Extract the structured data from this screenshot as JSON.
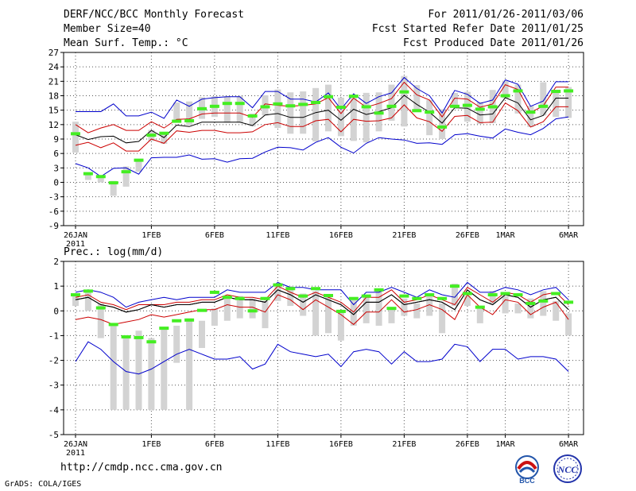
{
  "header": {
    "title": "DERF/NCC/BCC Monthly Forecast",
    "member_size": "Member Size=40",
    "variable": "Mean Surf. Temp.: °C",
    "period": "For 2011/01/26-2011/03/06",
    "start_date": "Fcst Started Refer Date 2011/01/25",
    "produced_date": "Fcst Produced Date 2011/01/26"
  },
  "footer": {
    "url": "http://cmdp.ncc.cma.gov.cn",
    "credit": "GrADS: COLA/IGES",
    "logo_bcc": "BCC",
    "logo_ncc": "NCC"
  },
  "colors": {
    "envelope": "#0000cc",
    "std_band": "#cc0000",
    "mean": "#000000",
    "bar": "#d3d3d3",
    "marker": "#44ee22",
    "grid": "#555555"
  },
  "chart_data": [
    {
      "type": "line",
      "title": "Mean Surf. Temp.: °C",
      "ylim": [
        -9,
        27
      ],
      "yticks": [
        -9,
        -6,
        -3,
        0,
        3,
        6,
        9,
        12,
        15,
        18,
        21,
        24,
        27
      ],
      "xticks": [
        {
          "day": 0,
          "label": "26JAN",
          "sub": "2011"
        },
        {
          "day": 6,
          "label": "1FEB"
        },
        {
          "day": 11,
          "label": "6FEB"
        },
        {
          "day": 16,
          "label": "11FEB"
        },
        {
          "day": 21,
          "label": "16FEB"
        },
        {
          "day": 26,
          "label": "21FEB"
        },
        {
          "day": 31,
          "label": "26FEB"
        },
        {
          "day": 34,
          "label": "1MAR"
        },
        {
          "day": 39,
          "label": "6MAR"
        }
      ],
      "series": [
        {
          "name": "max",
          "values": [
            14.7,
            14.7,
            14.7,
            16.3,
            13.8,
            13.8,
            14.6,
            13.3,
            17.1,
            15.8,
            17.3,
            17.6,
            17.8,
            17.8,
            15.5,
            18.9,
            18.9,
            17.3,
            17.3,
            16.7,
            18.6,
            15.2,
            18.4,
            16.4,
            17.8,
            18.6,
            21.8,
            19.5,
            18.0,
            14.4,
            19.1,
            18.3,
            16.4,
            17.1,
            21.3,
            20.4,
            15.8,
            16.9,
            20.9,
            20.9
          ]
        },
        {
          "name": "upper",
          "values": [
            12.0,
            10.3,
            11.3,
            12.0,
            10.8,
            10.8,
            12.6,
            11.3,
            13.1,
            13.2,
            14.2,
            14.4,
            14.4,
            14.4,
            13.5,
            16.3,
            16.0,
            15.8,
            16.0,
            16.3,
            17.6,
            14.3,
            17.5,
            15.6,
            16.4,
            17.4,
            20.8,
            18.2,
            17.1,
            13.6,
            17.5,
            17.3,
            15.6,
            16.3,
            20.3,
            19.3,
            14.5,
            15.9,
            19.8,
            19.8
          ]
        },
        {
          "name": "mean",
          "values": [
            9.9,
            8.9,
            9.5,
            9.6,
            8.2,
            8.5,
            10.8,
            9.3,
            11.9,
            11.6,
            12.5,
            12.5,
            12.5,
            12.5,
            11.8,
            14.0,
            14.3,
            13.5,
            13.5,
            14.5,
            15.0,
            12.9,
            15.2,
            14.1,
            14.7,
            15.5,
            18.1,
            16.2,
            14.6,
            12.3,
            15.5,
            15.4,
            14.0,
            14.2,
            17.6,
            16.5,
            13.0,
            13.9,
            17.5,
            17.5
          ]
        },
        {
          "name": "lower",
          "values": [
            7.7,
            8.3,
            7.2,
            8.2,
            6.5,
            6.5,
            9.0,
            8.1,
            10.7,
            10.4,
            10.8,
            10.8,
            10.3,
            10.3,
            10.5,
            12.0,
            12.4,
            11.6,
            11.6,
            12.8,
            13.1,
            10.5,
            13.1,
            12.7,
            12.8,
            13.4,
            16.1,
            13.4,
            12.6,
            10.6,
            13.7,
            13.9,
            12.4,
            12.5,
            16.5,
            14.9,
            11.5,
            12.6,
            15.7,
            15.7
          ]
        },
        {
          "name": "min",
          "values": [
            3.9,
            3.0,
            1.2,
            2.9,
            3.0,
            1.7,
            5.1,
            5.2,
            5.2,
            5.7,
            4.8,
            4.9,
            4.2,
            4.9,
            5.0,
            6.3,
            7.3,
            7.2,
            6.7,
            8.3,
            9.3,
            7.3,
            6.1,
            8.1,
            9.3,
            9.0,
            8.8,
            8.1,
            8.2,
            7.9,
            9.9,
            10.1,
            9.6,
            9.2,
            11.1,
            10.4,
            9.9,
            11.2,
            13.2,
            13.6
          ]
        }
      ],
      "boxes": [
        [
          6.2,
          12.6
        ],
        [
          0.5,
          1.8
        ],
        [
          0.0,
          1.4
        ],
        [
          -2.8,
          0.3
        ],
        [
          -0.9,
          3.3
        ],
        [
          2.2,
          4.8
        ],
        [
          8.6,
          10.9
        ],
        [
          8.0,
          10.0
        ],
        [
          12.6,
          16.6
        ],
        [
          11.9,
          16.8
        ],
        [
          13.2,
          17.7
        ],
        [
          13.6,
          17.9
        ],
        [
          12.4,
          17.9
        ],
        [
          12.4,
          17.9
        ],
        [
          11.6,
          14.3
        ],
        [
          13.9,
          18.1
        ],
        [
          11.3,
          19.3
        ],
        [
          10.1,
          18.7
        ],
        [
          10.1,
          18.9
        ],
        [
          8.5,
          19.6
        ],
        [
          10.6,
          20.3
        ],
        [
          9.6,
          17.6
        ],
        [
          8.6,
          18.1
        ],
        [
          8.3,
          18.6
        ],
        [
          10.6,
          18.7
        ],
        [
          12.8,
          20.3
        ],
        [
          11.6,
          22.1
        ],
        [
          14.9,
          20.2
        ],
        [
          9.8,
          17.1
        ],
        [
          9.0,
          15.2
        ],
        [
          15.8,
          18.6
        ],
        [
          12.6,
          18.8
        ],
        [
          12.1,
          16.7
        ],
        [
          12.3,
          19.2
        ],
        [
          17.5,
          21.1
        ],
        [
          14.3,
          20.3
        ],
        [
          11.5,
          15.9
        ],
        [
          13.9,
          20.8
        ],
        [
          13.6,
          19.2
        ],
        [
          13.4,
          19.8
        ]
      ],
      "markers": [
        10.1,
        1.8,
        1.2,
        -0.1,
        2.2,
        4.6,
        9.8,
        10.2,
        12.7,
        12.8,
        15.3,
        15.8,
        16.4,
        16.4,
        13.8,
        15.7,
        16.3,
        15.9,
        16.2,
        16.6,
        17.8,
        15.6,
        17.9,
        15.7,
        14.4,
        15.8,
        18.8,
        14.9,
        14.6,
        11.5,
        15.8,
        16.0,
        15.2,
        15.7,
        18.0,
        19.0,
        14.6,
        15.8,
        18.9,
        19.0
      ]
    },
    {
      "type": "line",
      "title": "Prec.: log(mm/d)",
      "ylim": [
        -5,
        2
      ],
      "yticks": [
        -5,
        -4,
        -3,
        -2,
        -1,
        0,
        1,
        2
      ],
      "xticks": [
        {
          "day": 0,
          "label": "26JAN",
          "sub": "2011"
        },
        {
          "day": 6,
          "label": "1FEB"
        },
        {
          "day": 11,
          "label": "6FEB"
        },
        {
          "day": 16,
          "label": "11FEB"
        },
        {
          "day": 21,
          "label": "16FEB"
        },
        {
          "day": 26,
          "label": "21FEB"
        },
        {
          "day": 31,
          "label": "26FEB"
        },
        {
          "day": 34,
          "label": "1MAR"
        },
        {
          "day": 39,
          "label": "6MAR"
        }
      ],
      "series": [
        {
          "name": "max",
          "values": [
            0.75,
            0.85,
            0.75,
            0.55,
            0.15,
            0.35,
            0.45,
            0.55,
            0.45,
            0.55,
            0.55,
            0.55,
            0.85,
            0.75,
            0.75,
            0.75,
            1.15,
            0.95,
            0.95,
            0.85,
            0.85,
            0.85,
            0.25,
            0.75,
            0.75,
            0.95,
            0.75,
            0.55,
            0.85,
            0.65,
            0.55,
            1.15,
            0.75,
            0.75,
            0.95,
            0.85,
            0.65,
            0.85,
            0.95,
            0.45
          ]
        },
        {
          "name": "upper",
          "values": [
            0.55,
            0.65,
            0.35,
            0.25,
            0.05,
            0.25,
            0.25,
            0.25,
            0.35,
            0.35,
            0.45,
            0.45,
            0.65,
            0.55,
            0.55,
            0.45,
            1.0,
            0.75,
            0.55,
            0.75,
            0.55,
            0.35,
            -0.05,
            0.55,
            0.55,
            0.85,
            0.35,
            0.45,
            0.65,
            0.45,
            0.25,
            0.95,
            0.65,
            0.35,
            0.75,
            0.65,
            0.35,
            0.65,
            0.75,
            0.25
          ]
        },
        {
          "name": "mean",
          "values": [
            0.45,
            0.55,
            0.25,
            0.15,
            -0.05,
            0.05,
            0.25,
            0.15,
            0.25,
            0.25,
            0.35,
            0.35,
            0.55,
            0.45,
            0.45,
            0.35,
            0.85,
            0.65,
            0.35,
            0.65,
            0.45,
            0.25,
            -0.15,
            0.35,
            0.35,
            0.65,
            0.25,
            0.35,
            0.45,
            0.35,
            0.05,
            0.85,
            0.45,
            0.25,
            0.65,
            0.55,
            0.15,
            0.45,
            0.55,
            0.05
          ]
        },
        {
          "name": "lower",
          "values": [
            -0.35,
            -0.25,
            -0.35,
            -0.55,
            -0.45,
            -0.35,
            -0.15,
            -0.25,
            -0.15,
            -0.05,
            0.05,
            0.05,
            0.25,
            0.15,
            0.15,
            -0.05,
            0.65,
            0.45,
            0.05,
            0.45,
            0.15,
            -0.15,
            -0.55,
            -0.05,
            -0.05,
            0.45,
            -0.05,
            0.05,
            0.25,
            0.05,
            -0.35,
            0.65,
            0.15,
            -0.15,
            0.45,
            0.35,
            -0.15,
            0.15,
            0.35,
            -0.35
          ]
        },
        {
          "name": "min",
          "values": [
            -2.05,
            -1.25,
            -1.55,
            -2.05,
            -2.45,
            -2.55,
            -2.35,
            -2.05,
            -1.75,
            -1.55,
            -1.75,
            -1.95,
            -1.95,
            -1.85,
            -2.35,
            -2.15,
            -1.35,
            -1.65,
            -1.75,
            -1.85,
            -1.75,
            -2.25,
            -1.65,
            -1.55,
            -1.65,
            -2.15,
            -1.65,
            -2.05,
            -2.05,
            -1.95,
            -1.35,
            -1.45,
            -2.05,
            -1.55,
            -1.55,
            -1.95,
            -1.85,
            -1.85,
            -1.95,
            -2.45
          ]
        },
        {
          "name": "median",
          "values": [
            0.45,
            0.55,
            0.25,
            0.15,
            -0.05,
            0.05,
            0.25,
            0.15,
            0.25,
            0.25,
            0.35,
            0.35,
            0.55,
            0.45,
            0.45,
            0.35,
            0.85,
            0.65,
            0.35,
            0.65,
            0.45,
            0.25,
            -0.15,
            0.35,
            0.35,
            0.65,
            0.25,
            0.35,
            0.45,
            0.35,
            0.05,
            0.85,
            0.45,
            0.25,
            0.65,
            0.55,
            0.15,
            0.45,
            0.55,
            0.05
          ]
        }
      ],
      "boxes": [
        [
          0.2,
          0.7
        ],
        [
          0.0,
          0.8
        ],
        [
          -1.1,
          0.3
        ],
        [
          -4.0,
          -0.5
        ],
        [
          -4.0,
          -1.1
        ],
        [
          -4.0,
          -0.8
        ],
        [
          -4.0,
          -1.1
        ],
        [
          -4.0,
          -0.7
        ],
        [
          -2.1,
          -0.6
        ],
        [
          -4.0,
          -0.3
        ],
        [
          -1.5,
          -0.4
        ],
        [
          -0.6,
          0.1
        ],
        [
          -0.4,
          0.6
        ],
        [
          -0.3,
          0.6
        ],
        [
          -0.3,
          0.5
        ],
        [
          -0.7,
          0.4
        ],
        [
          0.4,
          1.1
        ],
        [
          0.2,
          1.0
        ],
        [
          -0.2,
          0.7
        ],
        [
          -1.0,
          0.8
        ],
        [
          -0.9,
          0.6
        ],
        [
          -1.2,
          0.0
        ],
        [
          -0.6,
          0.5
        ],
        [
          -0.5,
          0.6
        ],
        [
          -0.6,
          0.9
        ],
        [
          -0.5,
          0.1
        ],
        [
          -0.2,
          0.5
        ],
        [
          -0.3,
          0.3
        ],
        [
          -0.2,
          0.7
        ],
        [
          -0.9,
          0.3
        ],
        [
          0.2,
          1.1
        ],
        [
          0.2,
          0.6
        ],
        [
          -0.5,
          0.2
        ],
        [
          0.3,
          0.8
        ],
        [
          -0.1,
          0.6
        ],
        [
          -0.1,
          0.3
        ],
        [
          -0.3,
          0.5
        ],
        [
          -0.2,
          0.8
        ],
        [
          -0.4,
          0.4
        ],
        [
          -1.0,
          -0.1
        ]
      ],
      "markers": [
        0.65,
        0.8,
        0.12,
        -0.55,
        -1.05,
        -1.08,
        -1.25,
        -0.7,
        -0.4,
        -0.37,
        0.02,
        0.75,
        0.55,
        0.5,
        0.0,
        0.5,
        1.05,
        0.9,
        0.6,
        0.9,
        0.62,
        -0.02,
        0.5,
        0.6,
        0.85,
        0.1,
        0.6,
        0.5,
        0.65,
        0.5,
        1.0,
        0.7,
        0.15,
        0.65,
        0.7,
        0.65,
        0.3,
        0.4,
        0.7,
        0.35
      ]
    }
  ]
}
